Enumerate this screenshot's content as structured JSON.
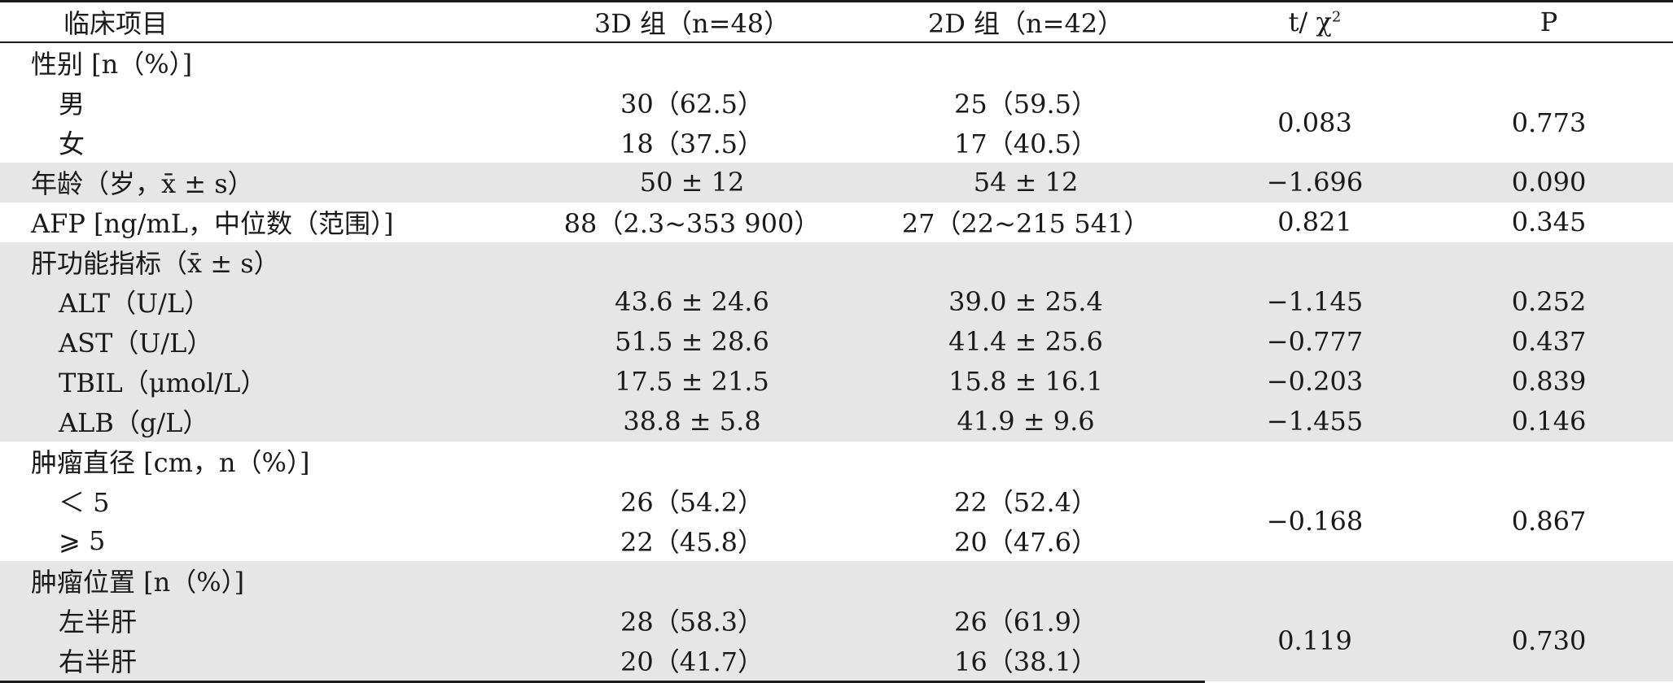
{
  "headers": {
    "item": "临床项目",
    "group3d": "3D 组（n=48）",
    "group2d": "2D 组（n=42）",
    "stat": "t/ χ",
    "stat_sup": "2",
    "p": "P"
  },
  "sex": {
    "label": "性别 [n（%）]",
    "male": {
      "label": "男",
      "g3d": "30（62.5）",
      "g2d": "25（59.5）"
    },
    "female": {
      "label": "女",
      "g3d": "18（37.5）",
      "g2d": "17（40.5）"
    },
    "stat": "0.083",
    "p": "0.773"
  },
  "age": {
    "label": "年龄（岁，x̄ ± s）",
    "g3d": "50 ± 12",
    "g2d": "54 ± 12",
    "stat": "−1.696",
    "p": "0.090"
  },
  "afp": {
    "label": "AFP [ng/mL，中位数（范围）]",
    "g3d": "88（2.3~353 900）",
    "g2d": "27（22~215 541）",
    "stat": "0.821",
    "p": "0.345"
  },
  "liver": {
    "label": "肝功能指标（x̄ ± s）",
    "rows": [
      {
        "label": "ALT（U/L）",
        "g3d": "43.6 ± 24.6",
        "g2d": "39.0 ± 25.4",
        "stat": "−1.145",
        "p": "0.252"
      },
      {
        "label": "AST（U/L）",
        "g3d": "51.5 ± 28.6",
        "g2d": "41.4 ± 25.6",
        "stat": "−0.777",
        "p": "0.437"
      },
      {
        "label": "TBIL（μmol/L）",
        "g3d": "17.5 ± 21.5",
        "g2d": "15.8 ± 16.1",
        "stat": "−0.203",
        "p": "0.839"
      },
      {
        "label": "ALB（g/L）",
        "g3d": "38.8 ± 5.8",
        "g2d": "41.9 ± 9.6",
        "stat": "−1.455",
        "p": "0.146"
      }
    ]
  },
  "diameter": {
    "label": "肿瘤直径 [cm，n（%）]",
    "lt5": {
      "label": "＜ 5",
      "g3d": "26（54.2）",
      "g2d": "22（52.4）"
    },
    "ge5": {
      "label": "⩾ 5",
      "g3d": "22（45.8）",
      "g2d": "20（47.6）"
    },
    "stat": "−0.168",
    "p": "0.867"
  },
  "location": {
    "label": "肿瘤位置 [n（%）]",
    "left": {
      "label": "左半肝",
      "g3d": "28（58.3）",
      "g2d": "26（61.9）"
    },
    "right": {
      "label": "右半肝",
      "g3d": "20（41.7）",
      "g2d": "16（38.1）"
    },
    "stat": "0.119",
    "p": "0.730"
  }
}
